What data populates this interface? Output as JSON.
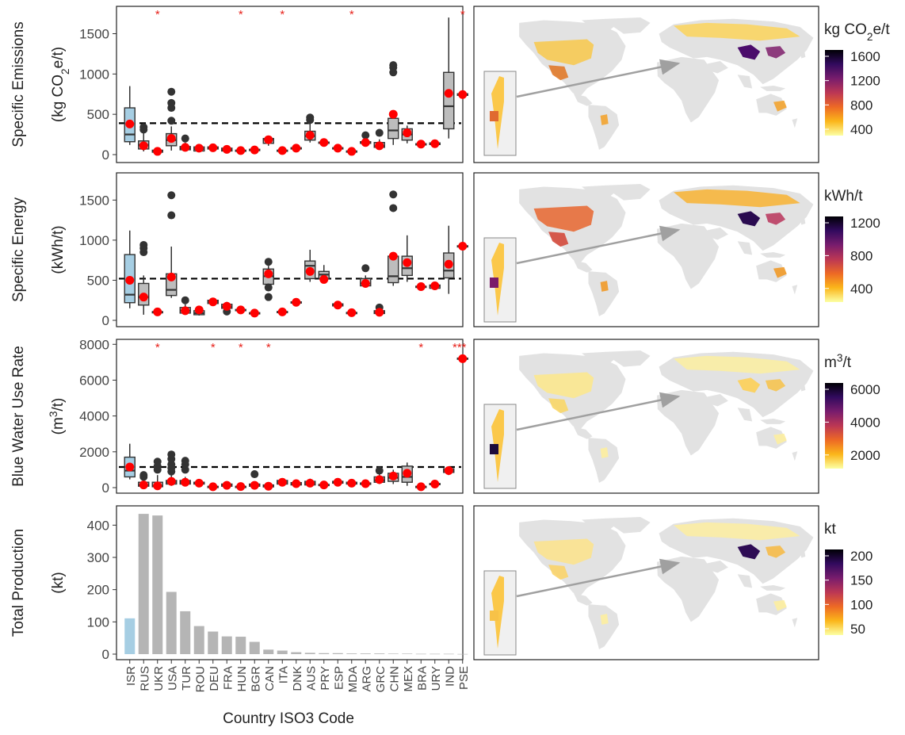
{
  "figure": {
    "x_title": "Country ISO3 Code",
    "countries": [
      "ISR",
      "RUS",
      "UKR",
      "USA",
      "TUR",
      "ROU",
      "DEU",
      "FRA",
      "HUN",
      "BGR",
      "CAN",
      "ITA",
      "DNK",
      "AUS",
      "PRY",
      "ESP",
      "MDA",
      "ARG",
      "GRC",
      "CHN",
      "MEX",
      "BRA",
      "URY",
      "IND",
      "PSE"
    ],
    "colors": {
      "highlight_box": "#a6cee3",
      "box": "#bdbdbd",
      "bar": "#b5b5b5",
      "mean_point": "#ff0000",
      "outlier": "#333333",
      "star": "#e8231c",
      "land": "#e2e2e2",
      "arrow": "#a0a0a0"
    },
    "colorbar_stops": [
      "#fcffa4",
      "#fbb61a",
      "#ed6925",
      "#bc3754",
      "#781c6d",
      "#320a5e",
      "#000004"
    ]
  },
  "chart_data": [
    {
      "type": "box",
      "ylabel": "Specific Emissions",
      "ylabel_unit": "(kg CO2e/t)",
      "ylim": [
        0,
        1800
      ],
      "yticks": [
        0,
        500,
        1000,
        1500
      ],
      "reference_line": 390,
      "significance_stars": {
        "UKR": "*",
        "HUN": "*",
        "ITA": "*",
        "MDA": "*",
        "PSE": "*"
      },
      "boxes": [
        {
          "country": "ISR",
          "lo": 120,
          "q1": 160,
          "med": 250,
          "q3": 580,
          "hi": 850,
          "mean": 380,
          "out": []
        },
        {
          "country": "RUS",
          "lo": 40,
          "q1": 70,
          "med": 120,
          "q3": 170,
          "hi": 300,
          "mean": 110,
          "out": [
            310,
            340
          ]
        },
        {
          "country": "UKR",
          "lo": 20,
          "q1": 30,
          "med": 40,
          "q3": 55,
          "hi": 70,
          "mean": 40,
          "out": []
        },
        {
          "country": "USA",
          "lo": 50,
          "q1": 110,
          "med": 180,
          "q3": 260,
          "hi": 350,
          "mean": 200,
          "out": [
            420,
            580,
            640,
            780
          ]
        },
        {
          "country": "TUR",
          "lo": 40,
          "q1": 60,
          "med": 80,
          "q3": 100,
          "hi": 150,
          "mean": 90,
          "out": [
            200
          ]
        },
        {
          "country": "ROU",
          "lo": 30,
          "q1": 45,
          "med": 70,
          "q3": 95,
          "hi": 120,
          "mean": 80,
          "out": []
        },
        {
          "country": "DEU",
          "lo": 60,
          "q1": 70,
          "med": 85,
          "q3": 95,
          "hi": 105,
          "mean": 85,
          "out": []
        },
        {
          "country": "FRA",
          "lo": 30,
          "q1": 45,
          "med": 60,
          "q3": 80,
          "hi": 100,
          "mean": 65,
          "out": []
        },
        {
          "country": "HUN",
          "lo": 40,
          "q1": 45,
          "med": 50,
          "q3": 55,
          "hi": 60,
          "mean": 50,
          "out": []
        },
        {
          "country": "BGR",
          "lo": 45,
          "q1": 50,
          "med": 58,
          "q3": 66,
          "hi": 72,
          "mean": 58,
          "out": []
        },
        {
          "country": "CAN",
          "lo": 110,
          "q1": 140,
          "med": 190,
          "q3": 200,
          "hi": 210,
          "mean": 185,
          "out": []
        },
        {
          "country": "ITA",
          "lo": 40,
          "q1": 45,
          "med": 50,
          "q3": 55,
          "hi": 60,
          "mean": 50,
          "out": []
        },
        {
          "country": "DNK",
          "lo": 70,
          "q1": 75,
          "med": 80,
          "q3": 85,
          "hi": 90,
          "mean": 80,
          "out": []
        },
        {
          "country": "AUS",
          "lo": 150,
          "q1": 180,
          "med": 230,
          "q3": 290,
          "hi": 380,
          "mean": 240,
          "out": [
            430,
            460
          ]
        },
        {
          "country": "PRY",
          "lo": 140,
          "q1": 145,
          "med": 150,
          "q3": 155,
          "hi": 160,
          "mean": 150,
          "out": []
        },
        {
          "country": "ESP",
          "lo": 70,
          "q1": 75,
          "med": 80,
          "q3": 85,
          "hi": 90,
          "mean": 80,
          "out": []
        },
        {
          "country": "MDA",
          "lo": 30,
          "q1": 35,
          "med": 40,
          "q3": 45,
          "hi": 50,
          "mean": 40,
          "out": []
        },
        {
          "country": "ARG",
          "lo": 120,
          "q1": 140,
          "med": 150,
          "q3": 160,
          "hi": 170,
          "mean": 150,
          "out": [
            240
          ]
        },
        {
          "country": "GRC",
          "lo": 80,
          "q1": 90,
          "med": 110,
          "q3": 150,
          "hi": 190,
          "mean": 110,
          "out": [
            270
          ]
        },
        {
          "country": "CHN",
          "lo": 120,
          "q1": 200,
          "med": 300,
          "q3": 450,
          "hi": 520,
          "mean": 500,
          "out": [
            1020,
            1080,
            1110
          ]
        },
        {
          "country": "MEX",
          "lo": 140,
          "q1": 180,
          "med": 250,
          "q3": 320,
          "hi": 360,
          "mean": 270,
          "out": []
        },
        {
          "country": "BRA",
          "lo": 120,
          "q1": 125,
          "med": 130,
          "q3": 135,
          "hi": 140,
          "mean": 130,
          "out": []
        },
        {
          "country": "URY",
          "lo": 120,
          "q1": 125,
          "med": 135,
          "q3": 145,
          "hi": 150,
          "mean": 135,
          "out": []
        },
        {
          "country": "IND",
          "lo": 200,
          "q1": 320,
          "med": 600,
          "q3": 1020,
          "hi": 1700,
          "mean": 760,
          "out": []
        },
        {
          "country": "PSE",
          "lo": 730,
          "q1": 735,
          "med": 745,
          "q3": 755,
          "hi": 760,
          "mean": 745,
          "out": []
        }
      ]
    },
    {
      "type": "box",
      "ylabel": "Specific Energy",
      "ylabel_unit": "(kWh/t)",
      "ylim": [
        0,
        1800
      ],
      "yticks": [
        0,
        500,
        1000,
        1500
      ],
      "reference_line": 520,
      "significance_stars": {},
      "boxes": [
        {
          "country": "ISR",
          "lo": 150,
          "q1": 220,
          "med": 320,
          "q3": 820,
          "hi": 1120,
          "mean": 500,
          "out": []
        },
        {
          "country": "RUS",
          "lo": 70,
          "q1": 190,
          "med": 290,
          "q3": 460,
          "hi": 560,
          "mean": 290,
          "out": [
            850,
            900,
            940
          ]
        },
        {
          "country": "UKR",
          "lo": 100,
          "q1": 102,
          "med": 105,
          "q3": 108,
          "hi": 112,
          "mean": 105,
          "out": []
        },
        {
          "country": "USA",
          "lo": 280,
          "q1": 310,
          "med": 380,
          "q3": 580,
          "hi": 920,
          "mean": 540,
          "out": [
            1310,
            1560
          ]
        },
        {
          "country": "TUR",
          "lo": 80,
          "q1": 90,
          "med": 120,
          "q3": 160,
          "hi": 200,
          "mean": 120,
          "out": [
            250
          ]
        },
        {
          "country": "ROU",
          "lo": 60,
          "q1": 70,
          "med": 90,
          "q3": 120,
          "hi": 160,
          "mean": 130,
          "out": []
        },
        {
          "country": "DEU",
          "lo": 200,
          "q1": 210,
          "med": 230,
          "q3": 250,
          "hi": 270,
          "mean": 230,
          "out": []
        },
        {
          "country": "FRA",
          "lo": 130,
          "q1": 150,
          "med": 170,
          "q3": 200,
          "hi": 230,
          "mean": 175,
          "out": [
            110
          ]
        },
        {
          "country": "HUN",
          "lo": 120,
          "q1": 125,
          "med": 130,
          "q3": 135,
          "hi": 140,
          "mean": 130,
          "out": []
        },
        {
          "country": "BGR",
          "lo": 80,
          "q1": 85,
          "med": 90,
          "q3": 95,
          "hi": 100,
          "mean": 90,
          "out": []
        },
        {
          "country": "CAN",
          "lo": 400,
          "q1": 450,
          "med": 550,
          "q3": 640,
          "hi": 680,
          "mean": 580,
          "out": [
            290,
            410,
            730
          ]
        },
        {
          "country": "ITA",
          "lo": 100,
          "q1": 102,
          "med": 105,
          "q3": 110,
          "hi": 115,
          "mean": 105,
          "out": []
        },
        {
          "country": "DNK",
          "lo": 215,
          "q1": 220,
          "med": 225,
          "q3": 230,
          "hi": 235,
          "mean": 225,
          "out": []
        },
        {
          "country": "AUS",
          "lo": 480,
          "q1": 520,
          "med": 680,
          "q3": 740,
          "hi": 880,
          "mean": 610,
          "out": []
        },
        {
          "country": "PRY",
          "lo": 470,
          "q1": 520,
          "med": 570,
          "q3": 610,
          "hi": 690,
          "mean": 510,
          "out": []
        },
        {
          "country": "ESP",
          "lo": 160,
          "q1": 180,
          "med": 190,
          "q3": 205,
          "hi": 220,
          "mean": 190,
          "out": []
        },
        {
          "country": "MDA",
          "lo": 90,
          "q1": 92,
          "med": 95,
          "q3": 98,
          "hi": 100,
          "mean": 95,
          "out": []
        },
        {
          "country": "ARG",
          "lo": 420,
          "q1": 430,
          "med": 460,
          "q3": 520,
          "hi": 560,
          "mean": 460,
          "out": [
            650
          ]
        },
        {
          "country": "GRC",
          "lo": 80,
          "q1": 85,
          "med": 100,
          "q3": 120,
          "hi": 140,
          "mean": 100,
          "out": [
            160
          ]
        },
        {
          "country": "CHN",
          "lo": 430,
          "q1": 470,
          "med": 550,
          "q3": 800,
          "hi": 840,
          "mean": 800,
          "out": [
            1400,
            1570
          ]
        },
        {
          "country": "MEX",
          "lo": 480,
          "q1": 560,
          "med": 650,
          "q3": 800,
          "hi": 1060,
          "mean": 720,
          "out": []
        },
        {
          "country": "BRA",
          "lo": 410,
          "q1": 415,
          "med": 420,
          "q3": 425,
          "hi": 430,
          "mean": 420,
          "out": []
        },
        {
          "country": "URY",
          "lo": 380,
          "q1": 400,
          "med": 430,
          "q3": 440,
          "hi": 450,
          "mean": 430,
          "out": []
        },
        {
          "country": "IND",
          "lo": 330,
          "q1": 530,
          "med": 620,
          "q3": 840,
          "hi": 1180,
          "mean": 700,
          "out": []
        },
        {
          "country": "PSE",
          "lo": 915,
          "q1": 920,
          "med": 925,
          "q3": 930,
          "hi": 935,
          "mean": 925,
          "out": []
        }
      ]
    },
    {
      "type": "box",
      "ylabel": "Blue Water Use Rate",
      "ylabel_unit": "(m3/t)",
      "ylim": [
        0,
        8100
      ],
      "yticks": [
        0,
        2000,
        4000,
        6000,
        8000
      ],
      "reference_line": 1150,
      "significance_stars": {
        "UKR": "*",
        "DEU": "*",
        "HUN": "*",
        "CAN": "*",
        "BRA": "*",
        "PSE": "***"
      },
      "boxes": [
        {
          "country": "ISR",
          "lo": 460,
          "q1": 600,
          "med": 950,
          "q3": 1700,
          "hi": 2450,
          "mean": 1150,
          "out": []
        },
        {
          "country": "RUS",
          "lo": 50,
          "q1": 80,
          "med": 150,
          "q3": 300,
          "hi": 450,
          "mean": 150,
          "out": [
            600,
            700
          ]
        },
        {
          "country": "UKR",
          "lo": 30,
          "q1": 50,
          "med": 100,
          "q3": 300,
          "hi": 700,
          "mean": 100,
          "out": [
            1000,
            1200,
            1450
          ]
        },
        {
          "country": "USA",
          "lo": 100,
          "q1": 200,
          "med": 300,
          "q3": 400,
          "hi": 700,
          "mean": 350,
          "out": [
            900,
            1100,
            1300,
            1600,
            1850
          ]
        },
        {
          "country": "TUR",
          "lo": 100,
          "q1": 200,
          "med": 300,
          "q3": 400,
          "hi": 600,
          "mean": 300,
          "out": [
            1000,
            1300,
            1500
          ]
        },
        {
          "country": "ROU",
          "lo": 150,
          "q1": 200,
          "med": 250,
          "q3": 300,
          "hi": 350,
          "mean": 250,
          "out": []
        },
        {
          "country": "DEU",
          "lo": 30,
          "q1": 40,
          "med": 50,
          "q3": 70,
          "hi": 100,
          "mean": 50,
          "out": []
        },
        {
          "country": "FRA",
          "lo": 50,
          "q1": 80,
          "med": 120,
          "q3": 200,
          "hi": 300,
          "mean": 130,
          "out": []
        },
        {
          "country": "HUN",
          "lo": 40,
          "q1": 50,
          "med": 60,
          "q3": 70,
          "hi": 80,
          "mean": 60,
          "out": []
        },
        {
          "country": "BGR",
          "lo": 50,
          "q1": 80,
          "med": 120,
          "q3": 200,
          "hi": 300,
          "mean": 130,
          "out": [
            750
          ]
        },
        {
          "country": "CAN",
          "lo": 20,
          "q1": 40,
          "med": 80,
          "q3": 150,
          "hi": 220,
          "mean": 80,
          "out": []
        },
        {
          "country": "ITA",
          "lo": 100,
          "q1": 200,
          "med": 300,
          "q3": 400,
          "hi": 500,
          "mean": 300,
          "out": []
        },
        {
          "country": "DNK",
          "lo": 100,
          "q1": 150,
          "med": 200,
          "q3": 280,
          "hi": 350,
          "mean": 220,
          "out": []
        },
        {
          "country": "AUS",
          "lo": 100,
          "q1": 150,
          "med": 250,
          "q3": 350,
          "hi": 500,
          "mean": 250,
          "out": []
        },
        {
          "country": "PRY",
          "lo": 100,
          "q1": 130,
          "med": 150,
          "q3": 180,
          "hi": 200,
          "mean": 150,
          "out": []
        },
        {
          "country": "ESP",
          "lo": 200,
          "q1": 250,
          "med": 300,
          "q3": 350,
          "hi": 400,
          "mean": 300,
          "out": []
        },
        {
          "country": "MDA",
          "lo": 150,
          "q1": 200,
          "med": 250,
          "q3": 300,
          "hi": 350,
          "mean": 250,
          "out": []
        },
        {
          "country": "ARG",
          "lo": 150,
          "q1": 180,
          "med": 220,
          "q3": 260,
          "hi": 300,
          "mean": 220,
          "out": []
        },
        {
          "country": "GRC",
          "lo": 200,
          "q1": 300,
          "med": 400,
          "q3": 600,
          "hi": 800,
          "mean": 450,
          "out": [
            950
          ]
        },
        {
          "country": "CHN",
          "lo": 200,
          "q1": 350,
          "med": 550,
          "q3": 800,
          "hi": 1000,
          "mean": 650,
          "out": []
        },
        {
          "country": "MEX",
          "lo": 100,
          "q1": 300,
          "med": 600,
          "q3": 1200,
          "hi": 1400,
          "mean": 800,
          "out": []
        },
        {
          "country": "BRA",
          "lo": 20,
          "q1": 30,
          "med": 50,
          "q3": 70,
          "hi": 100,
          "mean": 50,
          "out": []
        },
        {
          "country": "URY",
          "lo": 150,
          "q1": 180,
          "med": 200,
          "q3": 230,
          "hi": 260,
          "mean": 200,
          "out": []
        },
        {
          "country": "IND",
          "lo": 700,
          "q1": 850,
          "med": 950,
          "q3": 1050,
          "hi": 1150,
          "mean": 950,
          "out": []
        },
        {
          "country": "PSE",
          "lo": 7150,
          "q1": 7180,
          "med": 7200,
          "q3": 7230,
          "hi": 7260,
          "mean": 7200,
          "out": []
        }
      ]
    },
    {
      "type": "bar",
      "ylabel": "Total Production",
      "ylabel_unit": "(kt)",
      "ylim": [
        0,
        450
      ],
      "yticks": [
        0,
        100,
        200,
        300,
        400
      ],
      "categories": [
        "ISR",
        "RUS",
        "UKR",
        "USA",
        "TUR",
        "ROU",
        "DEU",
        "FRA",
        "HUN",
        "BGR",
        "CAN",
        "ITA",
        "DNK",
        "AUS",
        "PRY",
        "ESP",
        "MDA",
        "ARG",
        "GRC",
        "CHN",
        "MEX",
        "BRA",
        "URY",
        "IND",
        "PSE"
      ],
      "values": [
        111,
        435,
        430,
        193,
        133,
        87,
        70,
        55,
        54,
        38,
        14,
        11,
        6,
        4,
        3,
        3,
        2,
        2,
        2,
        1.5,
        1.5,
        1,
        1,
        1,
        0.5
      ]
    }
  ],
  "colorbars": [
    {
      "title": "kg CO2e/t",
      "ticks": [
        "1600",
        "1200",
        "800",
        "400"
      ]
    },
    {
      "title": "kWh/t",
      "ticks": [
        "1200",
        "800",
        "400"
      ]
    },
    {
      "title": "m3/t",
      "ticks": [
        "6000",
        "4000",
        "2000"
      ]
    },
    {
      "title": "kt",
      "ticks": [
        "200",
        "150",
        "100",
        "50"
      ]
    }
  ]
}
